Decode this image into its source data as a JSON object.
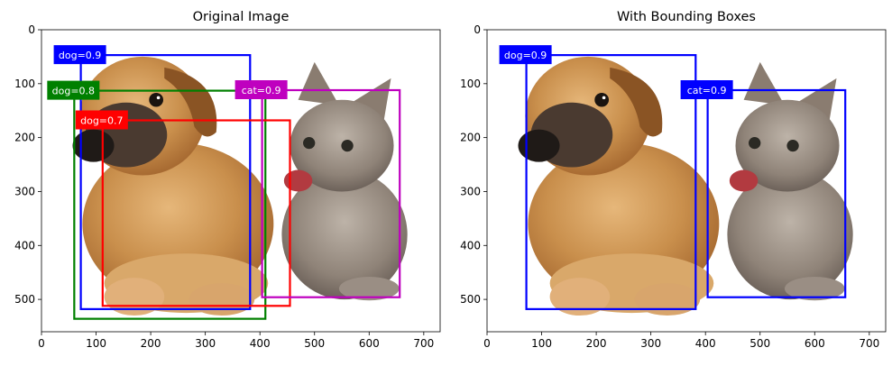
{
  "chart_data": [
    {
      "type": "image-annotation",
      "title": "Original Image",
      "xlim": [
        0,
        730
      ],
      "ylim": [
        560,
        0
      ],
      "xticks": [
        0,
        100,
        200,
        300,
        400,
        500,
        600,
        700
      ],
      "yticks": [
        0,
        100,
        200,
        300,
        400,
        500
      ],
      "image": {
        "extent": [
          0,
          730,
          560,
          0
        ],
        "content": "puppy and kitten photo"
      },
      "boxes": [
        {
          "label": "dog=0.9",
          "x1": 72,
          "y1": 47,
          "x2": 382,
          "y2": 518,
          "color": "#0000ff"
        },
        {
          "label": "dog=0.8",
          "x1": 60,
          "y1": 113,
          "x2": 410,
          "y2": 536,
          "color": "#008000"
        },
        {
          "label": "dog=0.7",
          "x1": 112,
          "y1": 168,
          "x2": 455,
          "y2": 512,
          "color": "#ff0000"
        },
        {
          "label": "cat=0.9",
          "x1": 404,
          "y1": 112,
          "x2": 656,
          "y2": 496,
          "color": "#bf00bf"
        }
      ]
    },
    {
      "type": "image-annotation",
      "title": "With Bounding Boxes",
      "xlim": [
        0,
        730
      ],
      "ylim": [
        560,
        0
      ],
      "xticks": [
        0,
        100,
        200,
        300,
        400,
        500,
        600,
        700
      ],
      "yticks": [
        0,
        100,
        200,
        300,
        400,
        500
      ],
      "image": {
        "extent": [
          0,
          730,
          560,
          0
        ],
        "content": "puppy and kitten photo"
      },
      "boxes": [
        {
          "label": "dog=0.9",
          "x1": 72,
          "y1": 47,
          "x2": 382,
          "y2": 518,
          "color": "#0000ff"
        },
        {
          "label": "cat=0.9",
          "x1": 404,
          "y1": 112,
          "x2": 656,
          "y2": 496,
          "color": "#0000ff"
        }
      ]
    }
  ]
}
